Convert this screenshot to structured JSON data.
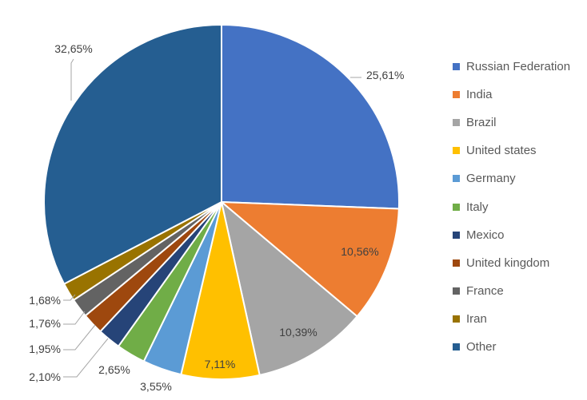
{
  "chart_data": {
    "type": "pie",
    "categories": [
      "Russian Federation",
      "India",
      "Brazil",
      "United states",
      "Germany",
      "Italy",
      "Mexico",
      "United kingdom",
      "France",
      "Iran",
      "Other"
    ],
    "values": [
      25.61,
      10.56,
      10.39,
      7.11,
      3.55,
      2.65,
      2.1,
      1.95,
      1.76,
      1.68,
      32.65
    ],
    "data_labels": [
      "25,61%",
      "10,56%",
      "10,39%",
      "7,11%",
      "3,55%",
      "2,65%",
      "2,10%",
      "1,95%",
      "1,76%",
      "1,68%",
      "32,65%"
    ],
    "colors": [
      "#4472c4",
      "#ed7d31",
      "#a5a5a5",
      "#ffc000",
      "#5b9bd5",
      "#70ad47",
      "#264478",
      "#9e480e",
      "#636363",
      "#997300",
      "#255e91"
    ],
    "start": "12 o'clock, clockwise",
    "legend_position": "right"
  }
}
